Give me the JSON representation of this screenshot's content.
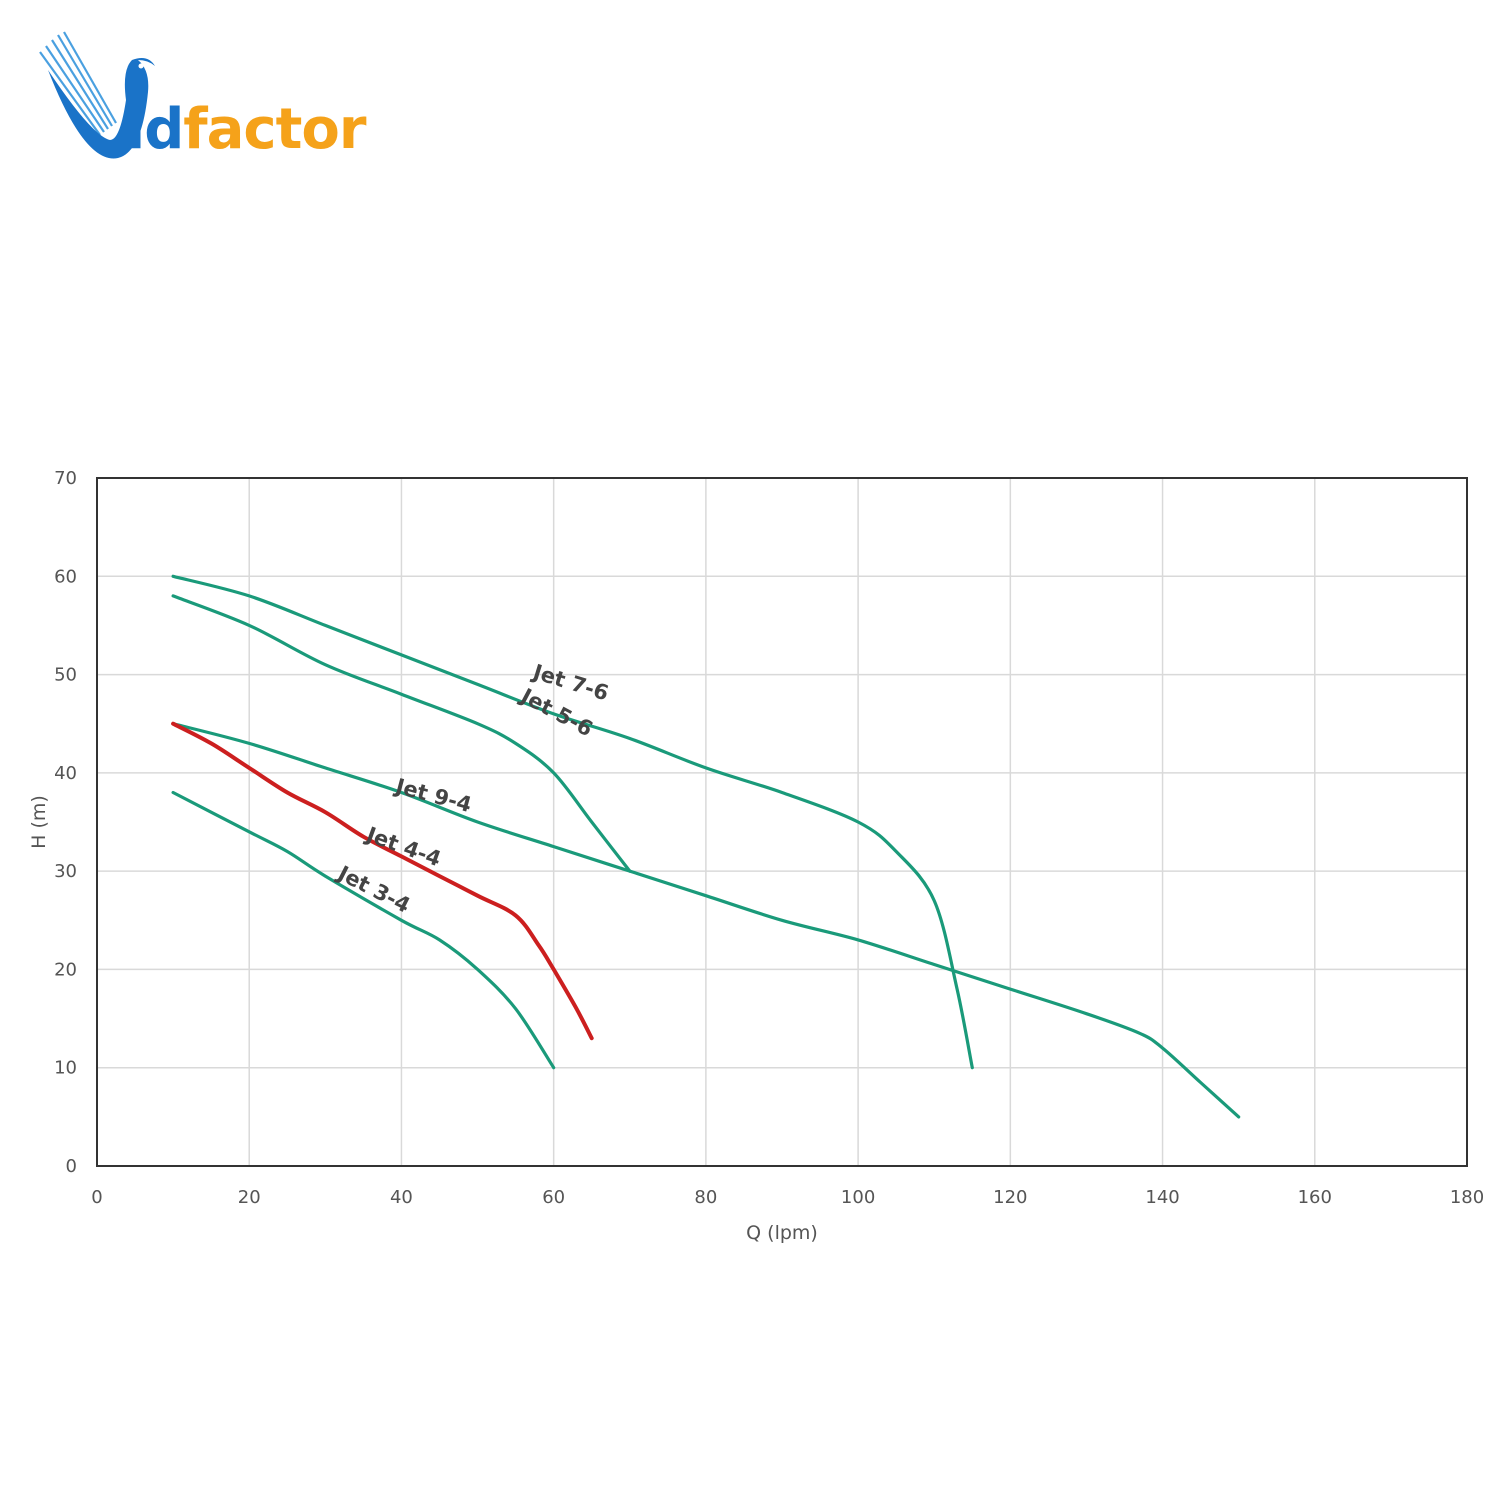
{
  "logo": {
    "text_blue": "id",
    "text_orange": "factor",
    "brand_blue": "#1a73c8",
    "brand_orange": "#f5a21a"
  },
  "chart_data": {
    "type": "line",
    "title": "",
    "xlabel": "Q (lpm)",
    "ylabel": "H (m)",
    "xlim": [
      0,
      180
    ],
    "ylim": [
      0,
      70
    ],
    "xticks": [
      0,
      20,
      40,
      60,
      80,
      100,
      120,
      140,
      160,
      180
    ],
    "yticks": [
      0,
      10,
      20,
      30,
      40,
      50,
      60,
      70
    ],
    "grid": true,
    "legend": "inline labels",
    "series": [
      {
        "name": "Jet 7-6",
        "color": "#1a9a7a",
        "x": [
          10,
          20,
          30,
          40,
          50,
          60,
          70,
          80,
          90,
          100,
          105,
          110,
          113,
          115
        ],
        "y": [
          60,
          58,
          55,
          52,
          49,
          46,
          43.5,
          40.5,
          38,
          35,
          32,
          27,
          18,
          10
        ]
      },
      {
        "name": "Jet 5-6",
        "color": "#1a9a7a",
        "x": [
          10,
          20,
          30,
          40,
          50,
          55,
          60,
          65,
          70
        ],
        "y": [
          58,
          55,
          51,
          48,
          45,
          43,
          40,
          35,
          30
        ]
      },
      {
        "name": "Jet 9-4",
        "color": "#1a9a7a",
        "x": [
          10,
          20,
          30,
          40,
          50,
          60,
          70,
          80,
          90,
          100,
          110,
          120,
          130,
          137,
          140,
          145,
          150
        ],
        "y": [
          45,
          43,
          40.5,
          38,
          35,
          32.5,
          30,
          27.5,
          25,
          23,
          20.5,
          18,
          15.5,
          13.5,
          12,
          8.5,
          5
        ]
      },
      {
        "name": "Jet 4-4",
        "color": "#cc1f1f",
        "x": [
          10,
          15,
          20,
          25,
          30,
          35,
          40,
          45,
          50,
          55,
          58,
          60,
          63,
          65
        ],
        "y": [
          45,
          43,
          40.5,
          38,
          36,
          33.5,
          31.5,
          29.5,
          27.5,
          25.5,
          22.5,
          20,
          16,
          13
        ]
      },
      {
        "name": "Jet 3-4",
        "color": "#1a9a7a",
        "x": [
          10,
          20,
          25,
          30,
          40,
          45,
          50,
          55,
          60
        ],
        "y": [
          38,
          34,
          32,
          29.5,
          25,
          23,
          20,
          16,
          10
        ]
      }
    ],
    "annotations": [
      {
        "text": "Jet 7-6",
        "series": "Jet 7-6",
        "x": 62,
        "y": 48.5,
        "angle": 17
      },
      {
        "text": "Jet 5-6",
        "series": "Jet 5-6",
        "x": 60,
        "y": 45.5,
        "angle": 28
      },
      {
        "text": "Jet 9-4",
        "series": "Jet 9-4",
        "x": 44,
        "y": 37,
        "angle": 15
      },
      {
        "text": "Jet 4-4",
        "series": "Jet 4-4",
        "x": 40,
        "y": 31.8,
        "angle": 20
      },
      {
        "text": "Jet 3-4",
        "series": "Jet 3-4",
        "x": 36,
        "y": 27.5,
        "angle": 27
      }
    ]
  }
}
